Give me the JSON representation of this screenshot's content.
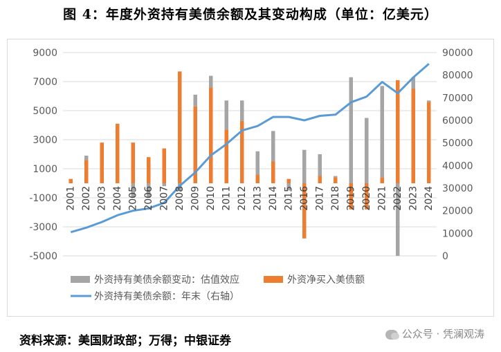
{
  "figure_title": "图 4：年度外资持有美债余额及其变动构成（单位：亿美元）",
  "source_note": "资料来源：美国财政部；万得；中银证券",
  "watermark": "公众号 · 凭澜观涛",
  "colors": {
    "valuation": "#a5a5a5",
    "net_purchase": "#ed7d31",
    "holdings": "#5b9bd5",
    "grid": "#d9d9d9",
    "text": "#595959"
  },
  "chart_data": {
    "type": "bar",
    "x": [
      "2001",
      "2002",
      "2003",
      "2004",
      "2005",
      "2006",
      "2007",
      "2008",
      "2009",
      "2010",
      "2011",
      "2012",
      "2013",
      "2014",
      "2015",
      "2016",
      "2017",
      "2018",
      "2019",
      "2020",
      "2021",
      "2022",
      "2023",
      "2024"
    ],
    "y_left": {
      "ticks": [
        9000,
        7000,
        5000,
        3000,
        1000,
        -1000,
        -3000,
        -5000
      ],
      "min": -5000,
      "max": 9000
    },
    "y_right": {
      "ticks": [
        90000,
        80000,
        70000,
        60000,
        50000,
        40000,
        30000,
        20000,
        10000,
        0
      ],
      "min": 0,
      "max": 90000
    },
    "series": [
      {
        "name": "外资持有美债余额变动：估值效应",
        "type": "bar",
        "axis": "left",
        "values": [
          0,
          300,
          0,
          0,
          -1000,
          -1000,
          -200,
          -500,
          800,
          800,
          2000,
          1400,
          1600,
          2100,
          -500,
          2300,
          1500,
          100,
          7300,
          4500,
          6300,
          -5000,
          800,
          100
        ]
      },
      {
        "name": "外资净买入美债额",
        "type": "bar",
        "axis": "left",
        "values": [
          300,
          1600,
          2800,
          4100,
          2800,
          1800,
          2400,
          7700,
          5300,
          6600,
          3700,
          4300,
          600,
          1500,
          300,
          -3800,
          500,
          400,
          -1800,
          -1800,
          400,
          7100,
          6500,
          5600
        ]
      },
      {
        "name": "外资持有美债余额：年末（右轴）",
        "type": "line",
        "axis": "right",
        "values": [
          10500,
          12500,
          15000,
          18000,
          20000,
          21000,
          23500,
          31000,
          37000,
          44500,
          49500,
          55500,
          57500,
          61500,
          61500,
          60000,
          62000,
          62500,
          68000,
          70500,
          77000,
          72000,
          79000,
          85000
        ]
      }
    ]
  }
}
